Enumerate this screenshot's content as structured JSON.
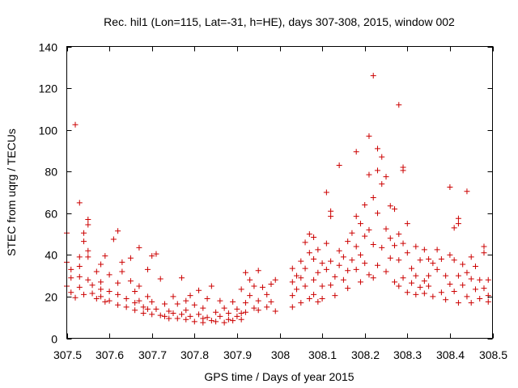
{
  "chart_data": {
    "type": "scatter",
    "title": "Rec. hil1 (Lon=115, Lat=-31, h=HE), days 307-308, 2015, window 002",
    "xlabel": "GPS time / Days of year 2015",
    "ylabel": "STEC from uqrg / TECUs",
    "xlim": [
      307.5,
      308.5
    ],
    "ylim": [
      0,
      140
    ],
    "x_ticks": [
      307.5,
      307.6,
      307.7,
      307.8,
      307.9,
      308.0,
      308.1,
      308.2,
      308.3,
      308.4,
      308.5
    ],
    "x_tick_labels": [
      "307.5",
      "307.6",
      "307.7",
      "307.8",
      "307.9",
      "308",
      "308.1",
      "308.2",
      "308.3",
      "308.4",
      "308.5"
    ],
    "y_ticks": [
      0,
      20,
      40,
      60,
      80,
      100,
      120,
      140
    ],
    "y_tick_labels": [
      "0",
      "20",
      "40",
      "60",
      "80",
      "100",
      "120",
      "140"
    ],
    "grid": false,
    "marker": "+",
    "color": "#cc0000",
    "series": [
      {
        "name": "STEC",
        "points": [
          [
            307.5,
            50.5
          ],
          [
            307.5,
            36.5
          ],
          [
            307.51,
            33.0
          ],
          [
            307.51,
            29.0
          ],
          [
            307.5,
            25.0
          ],
          [
            307.51,
            22.0
          ],
          [
            307.52,
            19.5
          ],
          [
            307.52,
            102.5
          ],
          [
            307.53,
            65.0
          ],
          [
            307.54,
            50.5
          ],
          [
            307.54,
            46.5
          ],
          [
            307.53,
            39.0
          ],
          [
            307.53,
            34.5
          ],
          [
            307.53,
            29.5
          ],
          [
            307.53,
            24.5
          ],
          [
            307.54,
            21.0
          ],
          [
            307.55,
            57.0
          ],
          [
            307.55,
            54.5
          ],
          [
            307.55,
            42.0
          ],
          [
            307.55,
            39.0
          ],
          [
            307.55,
            28.0
          ],
          [
            307.56,
            25.5
          ],
          [
            307.56,
            21.5
          ],
          [
            307.57,
            19.0
          ],
          [
            307.57,
            32.0
          ],
          [
            307.58,
            35.5
          ],
          [
            307.58,
            27.0
          ],
          [
            307.58,
            23.5
          ],
          [
            307.58,
            20.0
          ],
          [
            307.59,
            17.5
          ],
          [
            307.59,
            39.5
          ],
          [
            307.6,
            30.5
          ],
          [
            307.6,
            22.5
          ],
          [
            307.6,
            18.0
          ],
          [
            307.61,
            47.5
          ],
          [
            307.62,
            51.5
          ],
          [
            307.62,
            26.5
          ],
          [
            307.62,
            21.0
          ],
          [
            307.62,
            16.0
          ],
          [
            307.63,
            36.5
          ],
          [
            307.63,
            32.0
          ],
          [
            307.64,
            19.0
          ],
          [
            307.64,
            15.0
          ],
          [
            307.65,
            38.5
          ],
          [
            307.65,
            27.5
          ],
          [
            307.66,
            22.5
          ],
          [
            307.66,
            17.0
          ],
          [
            307.66,
            13.5
          ],
          [
            307.67,
            43.5
          ],
          [
            307.67,
            25.0
          ],
          [
            307.67,
            18.0
          ],
          [
            307.68,
            15.0
          ],
          [
            307.68,
            12.0
          ],
          [
            307.69,
            33.0
          ],
          [
            307.69,
            20.0
          ],
          [
            307.69,
            14.0
          ],
          [
            307.7,
            39.5
          ],
          [
            307.7,
            17.5
          ],
          [
            307.7,
            11.5
          ],
          [
            307.71,
            40.5
          ],
          [
            307.71,
            14.0
          ],
          [
            307.72,
            11.0
          ],
          [
            307.72,
            28.5
          ],
          [
            307.73,
            16.5
          ],
          [
            307.73,
            10.5
          ],
          [
            307.74,
            13.0
          ],
          [
            307.74,
            9.5
          ],
          [
            307.75,
            20.0
          ],
          [
            307.75,
            12.0
          ],
          [
            307.76,
            9.5
          ],
          [
            307.76,
            16.5
          ],
          [
            307.77,
            11.5
          ],
          [
            307.77,
            29.0
          ],
          [
            307.78,
            9.0
          ],
          [
            307.78,
            18.0
          ],
          [
            307.78,
            13.5
          ],
          [
            307.79,
            20.5
          ],
          [
            307.79,
            10.5
          ],
          [
            307.8,
            8.0
          ],
          [
            307.8,
            16.0
          ],
          [
            307.81,
            11.5
          ],
          [
            307.81,
            23.0
          ],
          [
            307.82,
            9.5
          ],
          [
            307.82,
            7.5
          ],
          [
            307.82,
            14.5
          ],
          [
            307.83,
            10.0
          ],
          [
            307.83,
            19.0
          ],
          [
            307.84,
            8.5
          ],
          [
            307.84,
            25.0
          ],
          [
            307.85,
            12.5
          ],
          [
            307.85,
            8.0
          ],
          [
            307.86,
            18.0
          ],
          [
            307.86,
            10.5
          ],
          [
            307.87,
            7.5
          ],
          [
            307.87,
            14.5
          ],
          [
            307.88,
            9.0
          ],
          [
            307.88,
            12.0
          ],
          [
            307.89,
            17.5
          ],
          [
            307.89,
            8.5
          ],
          [
            307.9,
            14.0
          ],
          [
            307.9,
            10.5
          ],
          [
            307.91,
            23.5
          ],
          [
            307.91,
            12.0
          ],
          [
            307.91,
            9.0
          ],
          [
            307.92,
            31.5
          ],
          [
            307.92,
            17.0
          ],
          [
            307.92,
            12.5
          ],
          [
            307.93,
            20.5
          ],
          [
            307.93,
            28.0
          ],
          [
            307.94,
            14.5
          ],
          [
            307.94,
            25.0
          ],
          [
            307.95,
            32.5
          ],
          [
            307.95,
            18.0
          ],
          [
            307.95,
            13.5
          ],
          [
            307.96,
            24.5
          ],
          [
            307.97,
            21.0
          ],
          [
            307.97,
            15.0
          ],
          [
            307.98,
            26.0
          ],
          [
            307.98,
            17.5
          ],
          [
            307.99,
            13.0
          ],
          [
            307.99,
            28.0
          ],
          [
            308.03,
            33.5
          ],
          [
            308.03,
            27.0
          ],
          [
            308.03,
            20.5
          ],
          [
            308.03,
            15.0
          ],
          [
            308.04,
            30.0
          ],
          [
            308.04,
            23.5
          ],
          [
            308.05,
            37.0
          ],
          [
            308.05,
            29.0
          ],
          [
            308.05,
            17.0
          ],
          [
            308.06,
            46.0
          ],
          [
            308.06,
            33.5
          ],
          [
            308.06,
            25.0
          ],
          [
            308.07,
            50.0
          ],
          [
            308.07,
            41.0
          ],
          [
            308.07,
            19.0
          ],
          [
            308.08,
            48.5
          ],
          [
            308.08,
            38.0
          ],
          [
            308.08,
            28.0
          ],
          [
            308.08,
            21.0
          ],
          [
            308.09,
            42.5
          ],
          [
            308.09,
            31.5
          ],
          [
            308.09,
            17.5
          ],
          [
            308.1,
            36.0
          ],
          [
            308.1,
            25.0
          ],
          [
            308.1,
            19.0
          ],
          [
            308.11,
            70.0
          ],
          [
            308.11,
            45.5
          ],
          [
            308.11,
            33.0
          ],
          [
            308.12,
            61.0
          ],
          [
            308.12,
            58.5
          ],
          [
            308.12,
            37.0
          ],
          [
            308.12,
            25.5
          ],
          [
            308.13,
            29.5
          ],
          [
            308.13,
            20.5
          ],
          [
            308.14,
            83.0
          ],
          [
            308.14,
            42.0
          ],
          [
            308.14,
            35.0
          ],
          [
            308.15,
            39.0
          ],
          [
            308.15,
            28.0
          ],
          [
            308.16,
            46.5
          ],
          [
            308.16,
            32.5
          ],
          [
            308.16,
            24.0
          ],
          [
            308.17,
            50.5
          ],
          [
            308.17,
            37.5
          ],
          [
            308.18,
            89.5
          ],
          [
            308.18,
            58.5
          ],
          [
            308.18,
            44.0
          ],
          [
            308.18,
            33.0
          ],
          [
            308.19,
            55.0
          ],
          [
            308.19,
            40.0
          ],
          [
            308.19,
            27.0
          ],
          [
            308.2,
            64.0
          ],
          [
            308.2,
            49.0
          ],
          [
            308.2,
            36.0
          ],
          [
            308.21,
            97.0
          ],
          [
            308.21,
            78.5
          ],
          [
            308.21,
            52.0
          ],
          [
            308.21,
            30.5
          ],
          [
            308.22,
            126.0
          ],
          [
            308.22,
            67.5
          ],
          [
            308.22,
            45.0
          ],
          [
            308.22,
            29.0
          ],
          [
            308.23,
            91.0
          ],
          [
            308.23,
            80.5
          ],
          [
            308.23,
            60.0
          ],
          [
            308.23,
            35.0
          ],
          [
            308.24,
            87.0
          ],
          [
            308.24,
            74.0
          ],
          [
            308.24,
            43.5
          ],
          [
            308.25,
            77.5
          ],
          [
            308.25,
            52.5
          ],
          [
            308.25,
            32.0
          ],
          [
            308.26,
            63.5
          ],
          [
            308.26,
            48.0
          ],
          [
            308.26,
            38.5
          ],
          [
            308.27,
            62.0
          ],
          [
            308.27,
            44.5
          ],
          [
            308.27,
            27.0
          ],
          [
            308.28,
            112.0
          ],
          [
            308.28,
            50.0
          ],
          [
            308.28,
            37.5
          ],
          [
            308.28,
            25.0
          ],
          [
            308.29,
            82.0
          ],
          [
            308.29,
            80.5
          ],
          [
            308.29,
            45.5
          ],
          [
            308.29,
            29.0
          ],
          [
            308.3,
            55.0
          ],
          [
            308.3,
            41.0
          ],
          [
            308.3,
            22.0
          ],
          [
            308.31,
            33.5
          ],
          [
            308.31,
            26.5
          ],
          [
            308.32,
            44.0
          ],
          [
            308.32,
            30.0
          ],
          [
            308.32,
            21.0
          ],
          [
            308.33,
            37.5
          ],
          [
            308.33,
            24.5
          ],
          [
            308.34,
            42.5
          ],
          [
            308.34,
            27.5
          ],
          [
            308.34,
            21.5
          ],
          [
            308.35,
            38.0
          ],
          [
            308.35,
            30.0
          ],
          [
            308.35,
            25.0
          ],
          [
            308.36,
            36.0
          ],
          [
            308.36,
            20.0
          ],
          [
            308.37,
            33.0
          ],
          [
            308.37,
            42.5
          ],
          [
            308.38,
            38.0
          ],
          [
            308.38,
            22.0
          ],
          [
            308.39,
            30.0
          ],
          [
            308.39,
            18.5
          ],
          [
            308.4,
            72.5
          ],
          [
            308.4,
            40.0
          ],
          [
            308.4,
            26.0
          ],
          [
            308.41,
            53.0
          ],
          [
            308.41,
            37.5
          ],
          [
            308.41,
            22.5
          ],
          [
            308.42,
            57.5
          ],
          [
            308.42,
            55.0
          ],
          [
            308.42,
            30.0
          ],
          [
            308.42,
            17.0
          ],
          [
            308.43,
            35.5
          ],
          [
            308.43,
            25.5
          ],
          [
            308.44,
            70.5
          ],
          [
            308.44,
            31.5
          ],
          [
            308.44,
            20.0
          ],
          [
            308.45,
            39.0
          ],
          [
            308.45,
            28.5
          ],
          [
            308.45,
            17.0
          ],
          [
            308.46,
            34.5
          ],
          [
            308.46,
            23.5
          ],
          [
            308.47,
            28.0
          ],
          [
            308.47,
            19.0
          ],
          [
            308.48,
            44.0
          ],
          [
            308.48,
            41.0
          ],
          [
            308.48,
            24.0
          ],
          [
            308.49,
            28.0
          ],
          [
            308.49,
            20.5
          ],
          [
            308.49,
            17.5
          ]
        ]
      }
    ]
  }
}
